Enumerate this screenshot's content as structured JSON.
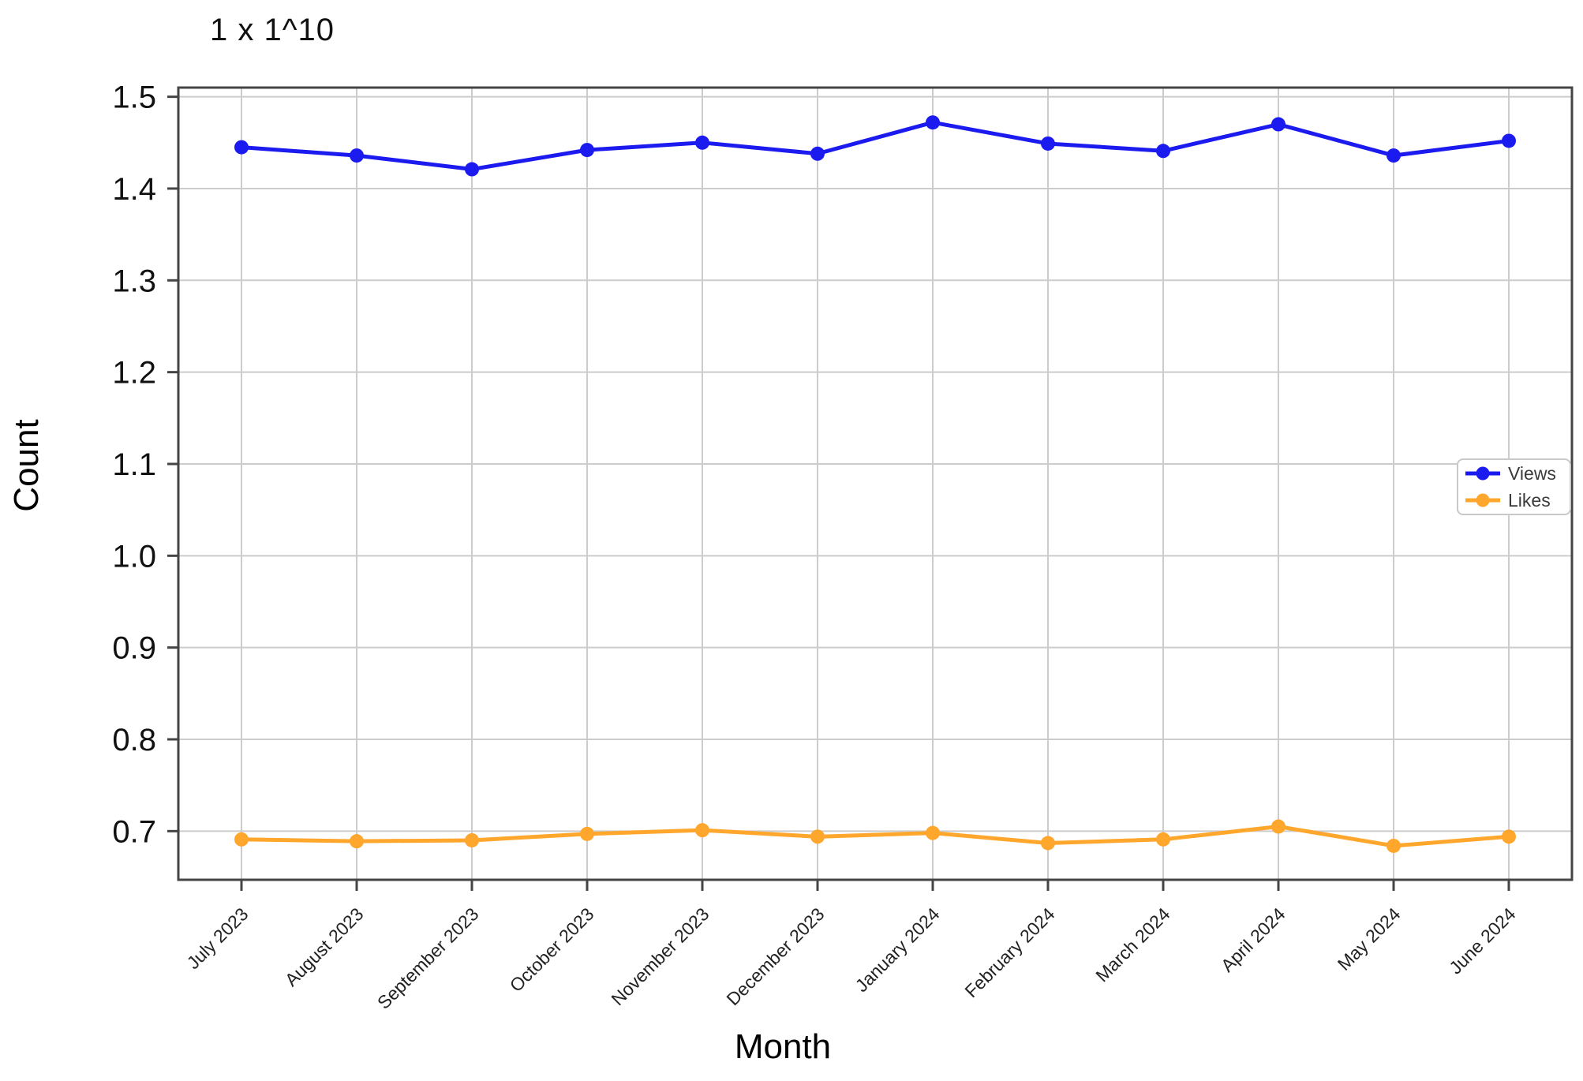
{
  "chart_data": {
    "type": "line",
    "title": "",
    "unit_note": "1 x 1^10",
    "xlabel": "Month",
    "ylabel": "Count",
    "categories": [
      "July 2023",
      "August 2023",
      "September 2023",
      "October 2023",
      "November 2023",
      "December 2023",
      "January 2024",
      "February 2024",
      "March 2024",
      "April 2024",
      "May 2024",
      "June 2024"
    ],
    "series": [
      {
        "name": "Views",
        "color": "#1b1bf0",
        "marker": "circle",
        "values": [
          1.445,
          1.436,
          1.421,
          1.442,
          1.45,
          1.438,
          1.472,
          1.449,
          1.441,
          1.47,
          1.436,
          1.452
        ]
      },
      {
        "name": "Likes",
        "color": "#ffa62d",
        "marker": "circle",
        "values": [
          0.691,
          0.689,
          0.69,
          0.697,
          0.701,
          0.694,
          0.698,
          0.687,
          0.691,
          0.705,
          0.684,
          0.694
        ]
      }
    ],
    "value_scale": "1e10",
    "ylim": [
      0.647,
      1.51
    ],
    "yticks": [
      0.7,
      0.8,
      0.9,
      1.0,
      1.1,
      1.2,
      1.3,
      1.4,
      1.5
    ],
    "grid": true,
    "x_tick_rotation_deg": 45,
    "legend": {
      "position": "center-right",
      "labels": [
        "Views",
        "Likes"
      ]
    }
  },
  "colors": {
    "grid": "#cccccc",
    "spine": "#454545",
    "tick_text": "#111111",
    "legend_border": "#c9c9c9",
    "legend_text": "#3a3a3a",
    "background": "#ffffff"
  }
}
